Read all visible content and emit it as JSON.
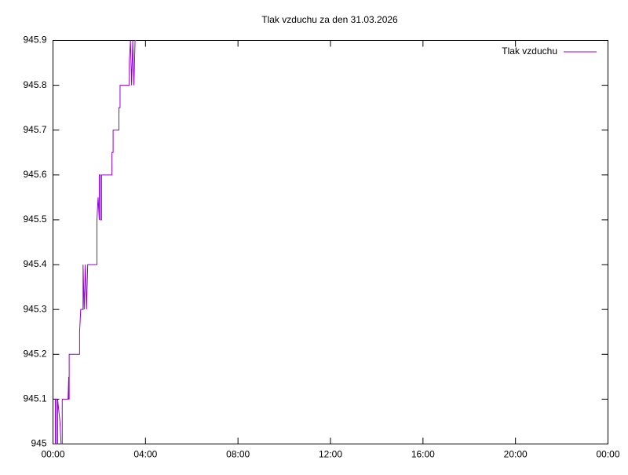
{
  "chart_data": {
    "type": "line",
    "title": "Tlak vzduchu za den 31.03.2026",
    "x": [
      0.03,
      0.1,
      0.1,
      0.15,
      0.15,
      0.2,
      0.2,
      0.3,
      0.35,
      0.4,
      0.4,
      0.65,
      0.68,
      0.68,
      0.7,
      0.7,
      1.15,
      1.15,
      1.2,
      1.3,
      1.3,
      1.35,
      1.4,
      1.45,
      1.5,
      1.9,
      1.9,
      1.95,
      2.0,
      2.0,
      2.05,
      2.05,
      2.1,
      2.1,
      2.55,
      2.55,
      2.6,
      2.6,
      2.85,
      2.85,
      2.9,
      2.9,
      3.3,
      3.3,
      3.35,
      3.4,
      3.45,
      3.5,
      3.55,
      3.6
    ],
    "series": [
      {
        "name": "Tlak vzduchu",
        "color": "#9400d3",
        "values": [
          945.0,
          945.0,
          945.1,
          945.1,
          945.0,
          945.0,
          945.1,
          945.05,
          945.0,
          945.0,
          945.1,
          945.1,
          945.15,
          945.1,
          945.1,
          945.2,
          945.2,
          945.25,
          945.3,
          945.3,
          945.4,
          945.3,
          945.4,
          945.3,
          945.4,
          945.4,
          945.5,
          945.55,
          945.5,
          945.6,
          945.6,
          945.5,
          945.5,
          945.6,
          945.6,
          945.65,
          945.65,
          945.7,
          945.7,
          945.75,
          945.75,
          945.8,
          945.8,
          945.85,
          945.9,
          945.8,
          945.9,
          945.8,
          945.9,
          945.9
        ]
      }
    ],
    "xlim": [
      0,
      24
    ],
    "xticks": [
      {
        "value": 0,
        "label": "00:00"
      },
      {
        "value": 4,
        "label": "04:00"
      },
      {
        "value": 8,
        "label": "08:00"
      },
      {
        "value": 12,
        "label": "12:00"
      },
      {
        "value": 16,
        "label": "16:00"
      },
      {
        "value": 20,
        "label": "20:00"
      },
      {
        "value": 24,
        "label": "00:00"
      }
    ],
    "ylim": [
      945,
      945.9
    ],
    "yticks": [
      945,
      945.1,
      945.2,
      945.3,
      945.4,
      945.5,
      945.6,
      945.7,
      945.8,
      945.9
    ],
    "grid": false,
    "legend": "top-right"
  }
}
